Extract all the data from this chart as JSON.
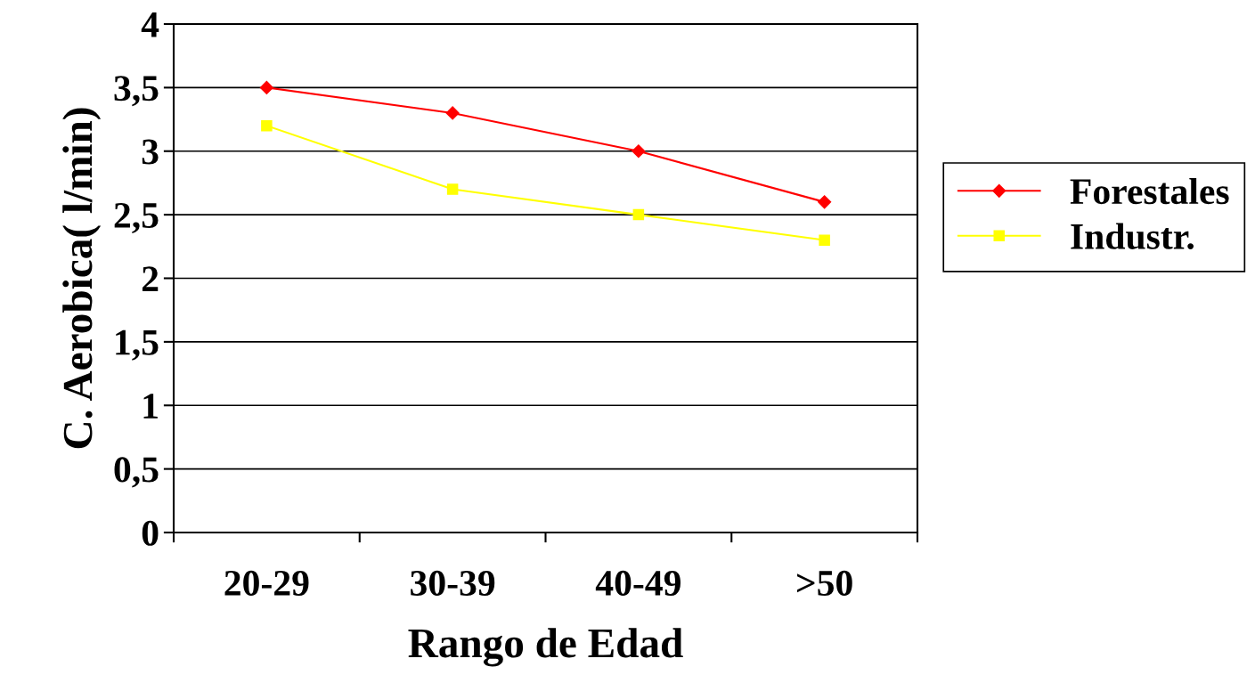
{
  "chart_data": {
    "type": "line",
    "xlabel": "Rango de Edad",
    "ylabel": "C. Aerobica( l/min)",
    "categories": [
      "20-29",
      "30-39",
      "40-49",
      ">50"
    ],
    "series": [
      {
        "name": "Forestales",
        "color": "#ff0000",
        "marker": "diamond",
        "values": [
          3.5,
          3.3,
          3.0,
          2.6
        ]
      },
      {
        "name": "Industr.",
        "color": "#ffff00",
        "marker": "square",
        "values": [
          3.2,
          2.7,
          2.5,
          2.3
        ]
      }
    ],
    "ylim": [
      0,
      4
    ],
    "yticks": [
      {
        "value": 0,
        "label": "0"
      },
      {
        "value": 0.5,
        "label": "0,5"
      },
      {
        "value": 1,
        "label": "1"
      },
      {
        "value": 1.5,
        "label": "1,5"
      },
      {
        "value": 2,
        "label": "2"
      },
      {
        "value": 2.5,
        "label": "2,5"
      },
      {
        "value": 3,
        "label": "3"
      },
      {
        "value": 3.5,
        "label": "3,5"
      },
      {
        "value": 4,
        "label": "4"
      }
    ],
    "grid": "y",
    "legend": "right",
    "line_style": "solid"
  }
}
